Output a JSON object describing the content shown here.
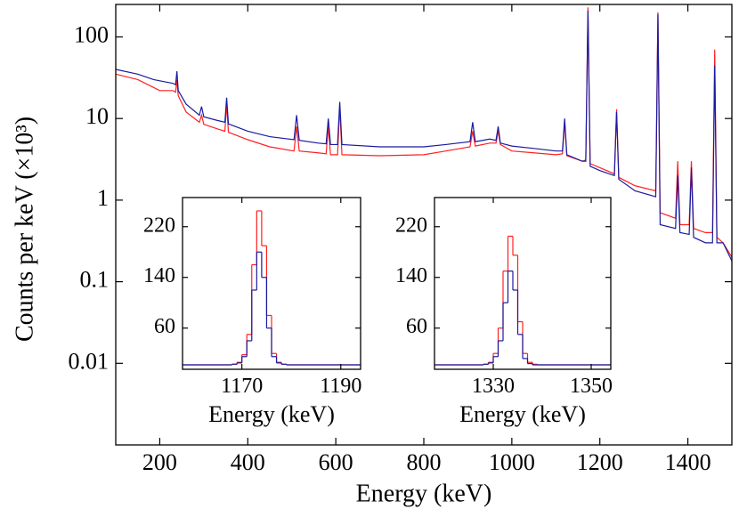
{
  "chart_data": [
    {
      "type": "line",
      "xlabel": "Energy (keV)",
      "ylabel": "Counts per keV (×10³)",
      "xlim": [
        100,
        1500
      ],
      "xticks": [
        200,
        400,
        600,
        800,
        1000,
        1200,
        1400
      ],
      "ylim": [
        0.001,
        250
      ],
      "yticks": [
        0.01,
        0.1,
        1,
        10,
        100
      ],
      "log_y": true,
      "x": [
        100,
        150,
        186,
        200,
        230,
        236,
        239,
        242,
        260,
        290,
        295,
        300,
        330,
        348,
        352,
        356,
        400,
        450,
        505,
        511,
        517,
        560,
        578,
        583,
        588,
        604,
        609,
        614,
        700,
        800,
        850,
        905,
        911,
        917,
        950,
        964,
        969,
        974,
        1000,
        1050,
        1100,
        1115,
        1120,
        1125,
        1160,
        1168,
        1173,
        1178,
        1200,
        1233,
        1238,
        1243,
        1280,
        1327,
        1332,
        1337,
        1372,
        1377,
        1382,
        1403,
        1408,
        1413,
        1440,
        1456,
        1461,
        1466,
        1480,
        1500
      ],
      "series": [
        {
          "color": "#ff2020",
          "values": [
            35,
            30,
            24,
            22,
            22,
            21,
            30,
            19,
            12,
            9,
            11,
            8.5,
            7.5,
            7,
            15,
            6.8,
            5.5,
            4.5,
            4,
            8,
            4,
            3.8,
            3.7,
            8,
            3.6,
            3.6,
            14,
            3.6,
            3.5,
            3.6,
            4,
            4.5,
            7,
            4.6,
            5,
            5,
            7,
            4.8,
            4,
            3.8,
            3.6,
            3.7,
            9,
            3.5,
            3,
            3.1,
            230,
            2.8,
            2.5,
            2.1,
            13,
            1.9,
            1.5,
            1.3,
            200,
            0.7,
            0.6,
            3,
            0.5,
            0.5,
            3,
            0.45,
            0.4,
            0.4,
            70,
            0.35,
            0.3,
            0.2
          ]
        },
        {
          "color": "#1a1aa0",
          "values": [
            40,
            35,
            30,
            29,
            27,
            26,
            38,
            22,
            15,
            11,
            14,
            10.5,
            9.5,
            9,
            18,
            8.6,
            7,
            6,
            5.5,
            11,
            5.4,
            5,
            4.9,
            10,
            4.8,
            4.8,
            16,
            4.8,
            4.5,
            4.5,
            4.8,
            5.2,
            9,
            5.2,
            5.6,
            5.4,
            8,
            5,
            4.6,
            4.3,
            4,
            4,
            10,
            3.6,
            3,
            3,
            210,
            2.6,
            2.3,
            2,
            12,
            1.8,
            1.3,
            1.1,
            190,
            0.5,
            0.45,
            2,
            0.4,
            0.38,
            2.5,
            0.35,
            0.3,
            0.3,
            45,
            0.3,
            0.3,
            0.18
          ]
        }
      ]
    },
    {
      "type": "histogram",
      "xlabel": "Energy (keV)",
      "xlim": [
        1158,
        1194
      ],
      "xticks": [
        1170,
        1190
      ],
      "ylim": [
        -5,
        266
      ],
      "yticks": [
        60,
        140,
        220
      ],
      "bins": [
        1158,
        1168,
        1169,
        1170,
        1171,
        1172,
        1173,
        1174,
        1175,
        1176,
        1177,
        1178,
        1179,
        1194
      ],
      "series": [
        {
          "color": "#ff2020",
          "values": [
            2,
            3,
            6,
            18,
            50,
            160,
            245,
            190,
            80,
            20,
            6,
            3,
            2
          ]
        },
        {
          "color": "#1a1aa0",
          "values": [
            2,
            3,
            5,
            15,
            40,
            120,
            180,
            140,
            60,
            15,
            5,
            3,
            2
          ]
        }
      ]
    },
    {
      "type": "histogram",
      "xlabel": "Energy (keV)",
      "xlim": [
        1318,
        1354
      ],
      "xticks": [
        1330,
        1350
      ],
      "ylim": [
        -5,
        266
      ],
      "yticks": [
        60,
        140,
        220
      ],
      "bins": [
        1318,
        1328,
        1329,
        1330,
        1331,
        1332,
        1333,
        1334,
        1335,
        1336,
        1337,
        1338,
        1339,
        1354
      ],
      "series": [
        {
          "color": "#ff2020",
          "values": [
            2,
            3,
            6,
            20,
            60,
            150,
            205,
            175,
            70,
            20,
            6,
            3,
            2
          ]
        },
        {
          "color": "#1a1aa0",
          "values": [
            2,
            3,
            5,
            15,
            40,
            100,
            150,
            120,
            50,
            12,
            4,
            2,
            2
          ]
        }
      ]
    }
  ]
}
